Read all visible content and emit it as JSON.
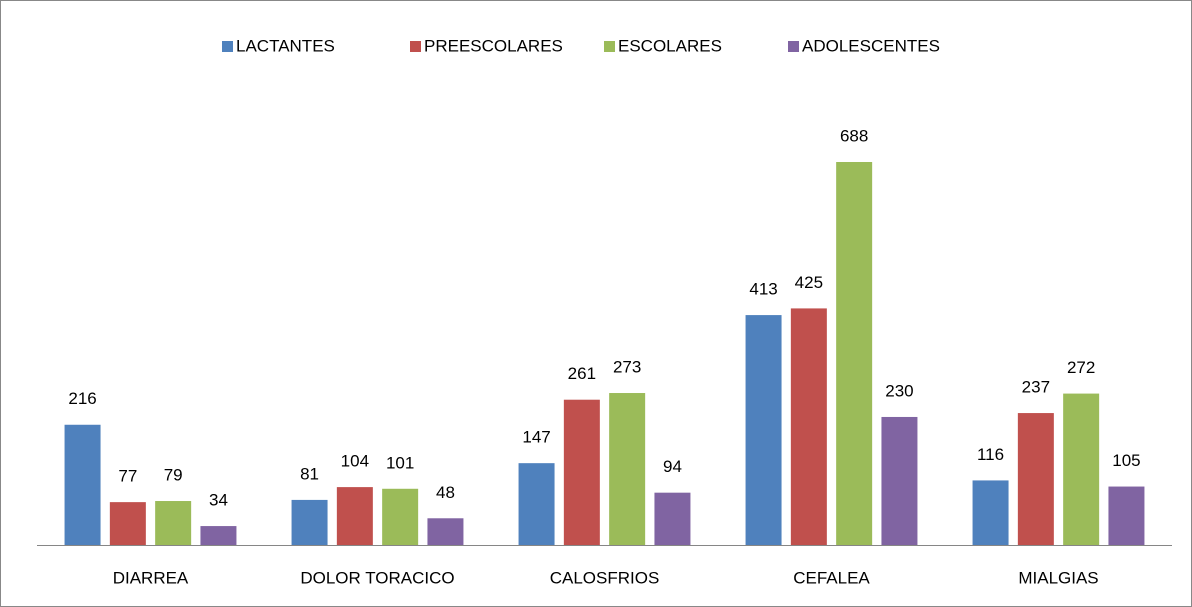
{
  "chart_data": {
    "type": "bar",
    "categories": [
      "DIARREA",
      "DOLOR TORACICO",
      "CALOSFRIOS",
      "CEFALEA",
      "MIALGIAS"
    ],
    "series": [
      {
        "name": "LACTANTES",
        "color": "#4f81bd",
        "values": [
          216,
          81,
          147,
          413,
          116
        ]
      },
      {
        "name": "PREESCOLARES",
        "color": "#c0504d",
        "values": [
          77,
          104,
          261,
          425,
          237
        ]
      },
      {
        "name": "ESCOLARES",
        "color": "#9bbb59",
        "values": [
          79,
          101,
          273,
          688,
          272
        ]
      },
      {
        "name": "ADOLESCENTES",
        "color": "#8064a2",
        "values": [
          34,
          48,
          94,
          230,
          105
        ]
      }
    ],
    "legend": "top",
    "grid": false
  }
}
